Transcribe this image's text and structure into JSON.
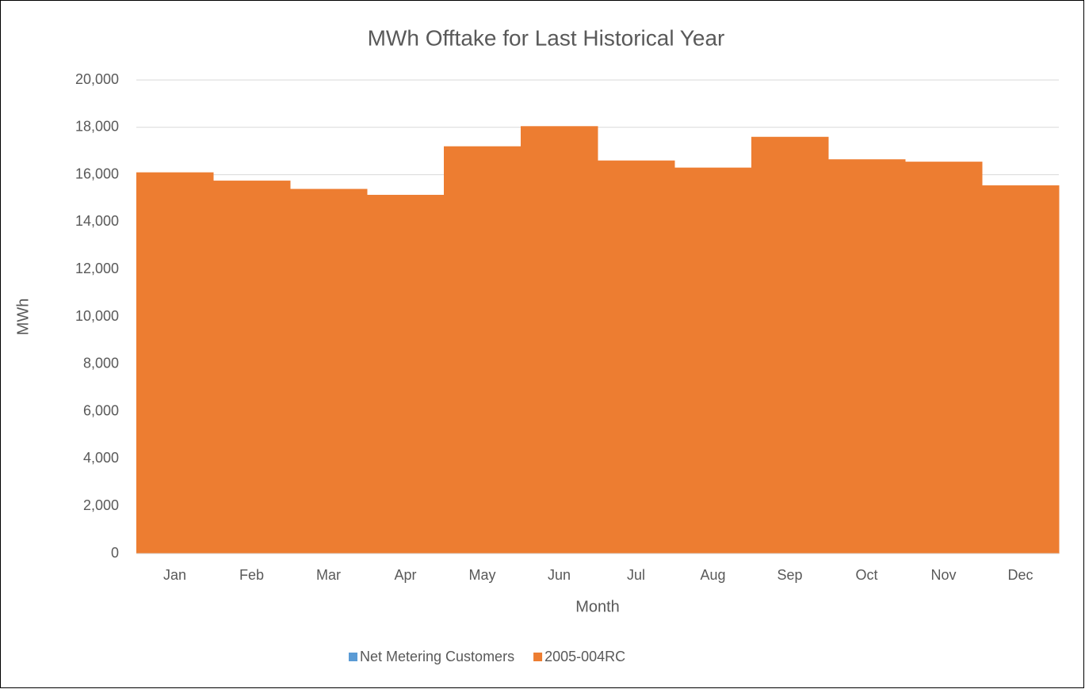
{
  "chart_data": {
    "type": "stacked_bar",
    "title": "MWh Offtake for Last Historical Year",
    "x_label": "Month",
    "y_label": "MWh",
    "categories": [
      "Jan",
      "Feb",
      "Mar",
      "Apr",
      "May",
      "Jun",
      "Jul",
      "Aug",
      "Sep",
      "Oct",
      "Nov",
      "Dec"
    ],
    "series": [
      {
        "name": "Net Metering Customers",
        "color": "#5b9bd5",
        "values": [
          0,
          0,
          0,
          0,
          0,
          0,
          0,
          0,
          0,
          0,
          0,
          0
        ]
      },
      {
        "name": "2005-004RC",
        "color": "#ed7d31",
        "values": [
          16100,
          15750,
          15400,
          15150,
          17200,
          18050,
          16600,
          16300,
          17600,
          16650,
          16550,
          15550
        ]
      }
    ],
    "ylim": [
      0,
      20000
    ],
    "yticks": [
      0,
      {
        "value": 2000,
        "label": "2,000"
      },
      {
        "value": 4000,
        "label": "4,000"
      },
      {
        "value": 6000,
        "label": "6,000"
      },
      {
        "value": 8000,
        "label": "8,000"
      },
      {
        "value": 10000,
        "label": "10,000"
      },
      {
        "value": 12000,
        "label": "12,000"
      },
      {
        "value": 14000,
        "label": "14,000"
      },
      {
        "value": 16000,
        "label": "16,000"
      },
      {
        "value": 18000,
        "label": "18,000"
      },
      {
        "value": 20000,
        "label": "20,000"
      }
    ],
    "grid": true,
    "legend": "bottom"
  }
}
